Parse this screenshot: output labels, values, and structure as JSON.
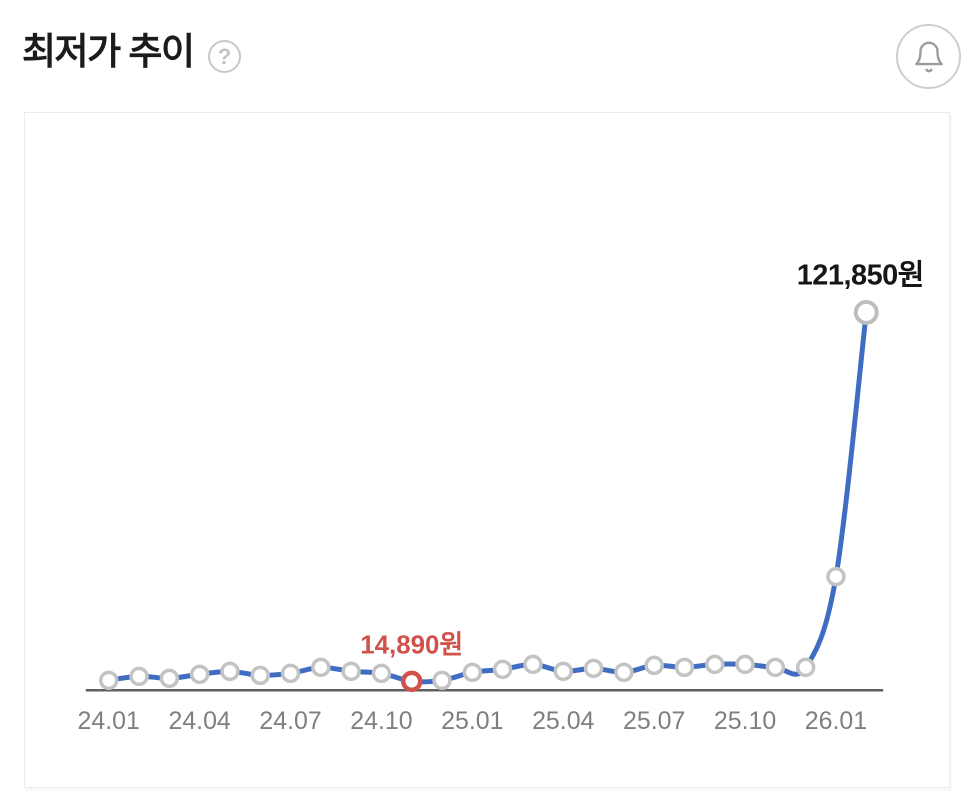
{
  "header": {
    "title": "최저가 추이",
    "help_glyph": "?",
    "help_icon": "question-mark-circle",
    "bell_icon": "notification-bell"
  },
  "chart_data": {
    "type": "line",
    "title": "최저가 추이",
    "series_name": "최저가",
    "unit": "원",
    "x": [
      "24.01",
      "24.02",
      "24.03",
      "24.04",
      "24.05",
      "24.06",
      "24.07",
      "24.08",
      "24.09",
      "24.10",
      "24.11",
      "24.12",
      "25.01",
      "25.02",
      "25.03",
      "25.04",
      "25.05",
      "25.06",
      "25.07",
      "25.08",
      "25.09",
      "25.10",
      "25.11",
      "25.12",
      "26.01",
      "26.02"
    ],
    "values": [
      15180,
      16340,
      15760,
      16910,
      17780,
      16620,
      17200,
      18940,
      17780,
      17200,
      14890,
      15180,
      17490,
      18360,
      19800,
      17780,
      18650,
      17490,
      19520,
      18940,
      19800,
      19800,
      18940,
      18940,
      45250,
      121850
    ],
    "x_tick_labels": [
      "24.01",
      "24.04",
      "24.07",
      "24.10",
      "25.01",
      "25.04",
      "25.07",
      "25.10",
      "26.01"
    ],
    "x_tick_indices": [
      0,
      3,
      6,
      9,
      12,
      15,
      18,
      21,
      24
    ],
    "annotations": [
      {
        "index": 10,
        "label": "14,890원",
        "type": "min",
        "color": "#d0524a"
      },
      {
        "index": 25,
        "label": "121,850원",
        "type": "max",
        "color": "#161616"
      }
    ],
    "ylim": [
      14890,
      121850
    ],
    "grid": false,
    "legend_position": "none",
    "colors": {
      "line": "#3e6dc2",
      "marker_fill": "#ffffff",
      "marker_stroke": "#c3c3c3",
      "min_marker_stroke": "#d0524a",
      "max_marker_stroke": "#bdbdbd",
      "axis": "#5f5f5f",
      "tick_text": "#7f7f7f"
    }
  }
}
